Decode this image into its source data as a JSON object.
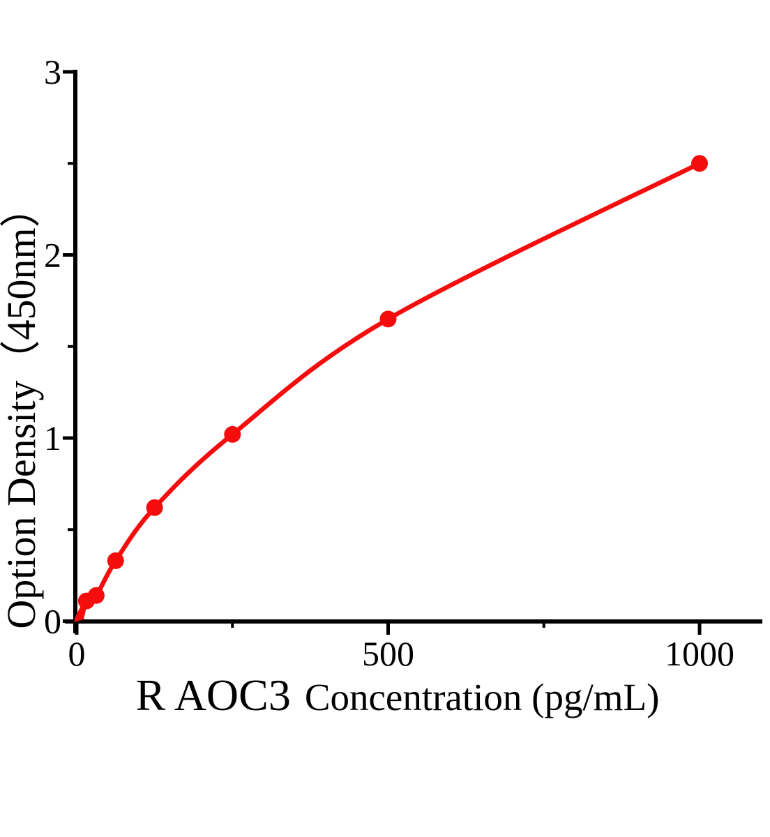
{
  "chart_data": {
    "type": "line",
    "title": "",
    "xlabel": "R AOC3 Concentration (pg/mL)",
    "xlabel_primary": "R AOC3",
    "xlabel_secondary": "Concentration (pg/mL)",
    "ylabel": "Option Density（450nm）",
    "x": [
      15.6,
      31.2,
      62.5,
      125,
      250,
      500,
      1000
    ],
    "y": [
      0.11,
      0.14,
      0.33,
      0.62,
      1.02,
      1.65,
      2.5
    ],
    "curve_start": {
      "x": 0,
      "y": 0.01
    },
    "xlim": [
      0,
      1100
    ],
    "ylim": [
      0,
      3
    ],
    "x_major_ticks": [
      0,
      500,
      1000
    ],
    "x_minor_ticks": [
      250,
      750
    ],
    "y_major_ticks": [
      0,
      1,
      2,
      3
    ],
    "y_minor_ticks": [
      0.5,
      1.5,
      2.5
    ],
    "x_major_tick_labels": [
      "0",
      "500",
      "1000"
    ],
    "y_major_tick_labels": [
      "0",
      "1",
      "2",
      "3"
    ],
    "grid": false,
    "legend": false,
    "line_color": "#f50d0d",
    "axis_color": "#000000",
    "marker": "circle"
  }
}
